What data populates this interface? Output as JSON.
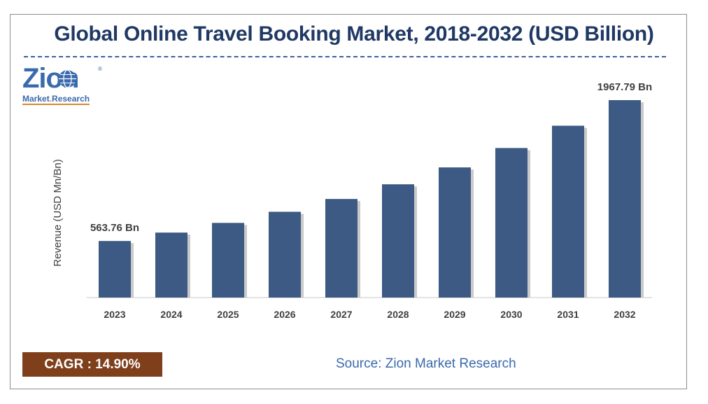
{
  "title": "Global Online Travel Booking Market, 2018-2032 (USD Billion)",
  "logo": {
    "word": "Zion",
    "registered": "®",
    "sub_a": "Market",
    "sub_dot": ".",
    "sub_b": "Research"
  },
  "cagr": {
    "label": "CAGR : 14.90%"
  },
  "source": "Source: Zion Market Research",
  "colors": {
    "bar": "#3c5a83",
    "cagr_bg": "#7f3f1b",
    "title": "#1f3864",
    "accent": "#3a6aad"
  },
  "chart_data": {
    "type": "bar",
    "title": "Global Online Travel Booking Market, 2018-2032 (USD Billion)",
    "xlabel": "",
    "ylabel": "Revenue (USD Mn/Bn)",
    "categories": [
      "2023",
      "2024",
      "2025",
      "2026",
      "2027",
      "2028",
      "2029",
      "2030",
      "2031",
      "2032"
    ],
    "values": [
      563.76,
      647.76,
      744.28,
      855.18,
      982.6,
      1129.01,
      1297.23,
      1490.52,
      1712.61,
      1967.79
    ],
    "data_labels": [
      {
        "index": 0,
        "text": "563.76 Bn"
      },
      {
        "index": 9,
        "text": "1967.79 Bn"
      }
    ],
    "ylim": [
      0,
      1967.79
    ],
    "grid": false,
    "legend": "none"
  }
}
